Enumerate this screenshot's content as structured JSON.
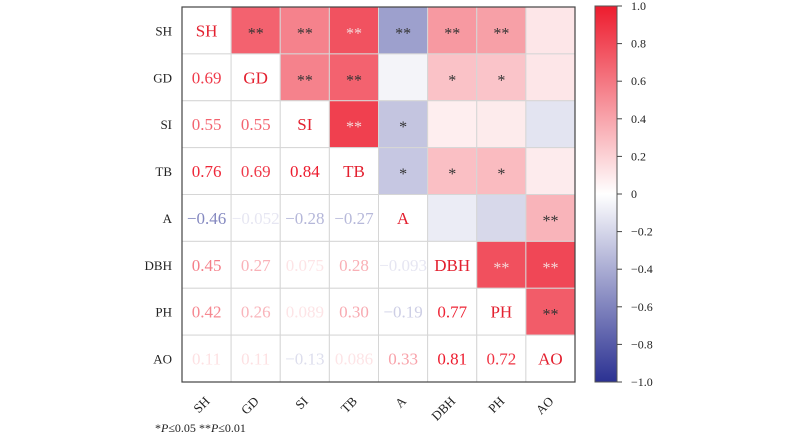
{
  "chart_data": {
    "type": "heatmap",
    "title": "",
    "variables": [
      "SH",
      "GD",
      "SI",
      "TB",
      "A",
      "DBH",
      "PH",
      "AO"
    ],
    "lower_triangle_values": [
      [
        null,
        null,
        null,
        null,
        null,
        null,
        null,
        null
      ],
      [
        0.69,
        null,
        null,
        null,
        null,
        null,
        null,
        null
      ],
      [
        0.55,
        0.55,
        null,
        null,
        null,
        null,
        null,
        null
      ],
      [
        0.76,
        0.69,
        0.84,
        null,
        null,
        null,
        null,
        null
      ],
      [
        -0.46,
        -0.052,
        -0.28,
        -0.27,
        null,
        null,
        null,
        null
      ],
      [
        0.45,
        0.27,
        0.075,
        0.28,
        -0.093,
        null,
        null,
        null
      ],
      [
        0.42,
        0.26,
        0.089,
        0.3,
        -0.19,
        0.77,
        null,
        null
      ],
      [
        0.11,
        0.11,
        -0.13,
        0.086,
        0.33,
        0.81,
        0.72,
        null
      ]
    ],
    "value_labels": [
      [
        null,
        null,
        null,
        null,
        null,
        null,
        null,
        null
      ],
      [
        "0.69",
        null,
        null,
        null,
        null,
        null,
        null,
        null
      ],
      [
        "0.55",
        "0.55",
        null,
        null,
        null,
        null,
        null,
        null
      ],
      [
        "0.76",
        "0.69",
        "0.84",
        null,
        null,
        null,
        null,
        null
      ],
      [
        "−0.46",
        "−0.052",
        "−0.28",
        "−0.27",
        null,
        null,
        null,
        null
      ],
      [
        "0.45",
        "0.27",
        "0.075",
        "0.28",
        "−0.093",
        null,
        null,
        null
      ],
      [
        "0.42",
        "0.26",
        "0.089",
        "0.30",
        "−0.19",
        "0.77",
        null,
        null
      ],
      [
        "0.11",
        "0.11",
        "−0.13",
        "0.086",
        "0.33",
        "0.81",
        "0.72",
        null
      ]
    ],
    "upper_triangle_significance": [
      [
        null,
        "**",
        "**",
        "**",
        "**",
        "**",
        "**",
        ""
      ],
      [
        null,
        null,
        "**",
        "**",
        "",
        "*",
        "*",
        ""
      ],
      [
        null,
        null,
        null,
        "**",
        "*",
        "",
        "",
        ""
      ],
      [
        null,
        null,
        null,
        null,
        "*",
        "*",
        "*",
        ""
      ],
      [
        null,
        null,
        null,
        null,
        null,
        "",
        "",
        "**"
      ],
      [
        null,
        null,
        null,
        null,
        null,
        null,
        "**",
        "**"
      ],
      [
        null,
        null,
        null,
        null,
        null,
        null,
        null,
        "**"
      ],
      [
        null,
        null,
        null,
        null,
        null,
        null,
        null,
        null
      ]
    ],
    "colorbar": {
      "range": [
        -1.0,
        1.0
      ],
      "ticks": [
        1.0,
        0.8,
        0.6,
        0.4,
        0.2,
        0,
        -0.2,
        -0.4,
        -0.6,
        -0.8,
        -1.0
      ],
      "tick_labels": [
        "1.0",
        "0.8",
        "0.6",
        "0.4",
        "0.2",
        "0",
        "−0.2",
        "−0.4",
        "−0.6",
        "−0.8",
        "−1.0"
      ],
      "colors": {
        "negative": "#2b3192",
        "neutral": "#ffffff",
        "positive": "#ed1c2e"
      }
    },
    "diagonal_label_color": "#e3202f",
    "grid": true,
    "legend_position": "right"
  },
  "footnote": {
    "star1": "*",
    "p1": "P",
    "t1": "≤0.05 ",
    "star2": "**",
    "p2": "P",
    "t2": "≤0.01"
  }
}
